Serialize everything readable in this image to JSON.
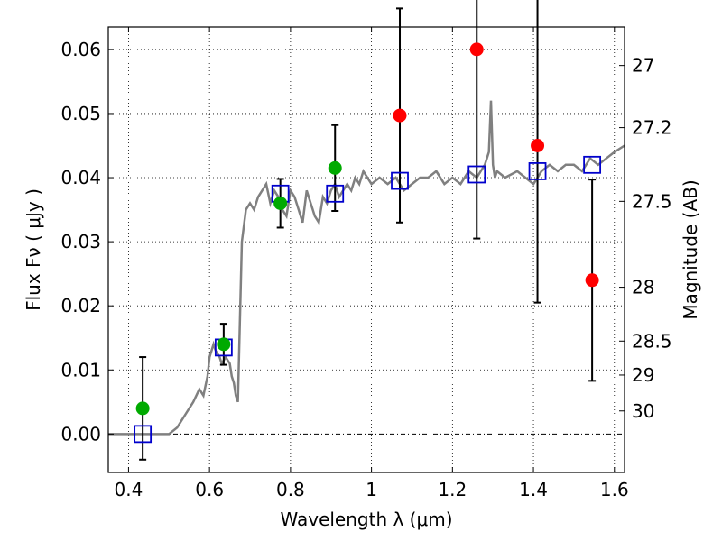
{
  "chart_data": {
    "type": "scatter",
    "title": "",
    "xlabel": "Wavelength  λ (μm)",
    "ylabel": "Flux  Fν  ( μJy )",
    "ylabel_right": "Magnitude (AB)",
    "xlim": [
      0.35,
      1.625
    ],
    "ylim": [
      -0.006,
      0.0635
    ],
    "x_ticks": [
      0.4,
      0.6,
      0.8,
      1.0,
      1.2,
      1.4,
      1.6
    ],
    "x_tick_labels": [
      "0.4",
      "0.6",
      "0.8",
      "1",
      "1.2",
      "1.4",
      "1.6"
    ],
    "y_ticks": [
      0.0,
      0.01,
      0.02,
      0.03,
      0.04,
      0.05,
      0.06
    ],
    "y_tick_labels": [
      "0.00",
      "0.01",
      "0.02",
      "0.03",
      "0.04",
      "0.05",
      "0.06"
    ],
    "right_axis_ticks": [
      {
        "label": "27",
        "flux": 0.0575
      },
      {
        "label": "27.2",
        "flux": 0.0478
      },
      {
        "label": "27.5",
        "flux": 0.0363
      },
      {
        "label": "28",
        "flux": 0.0229
      },
      {
        "label": "28.5",
        "flux": 0.0145
      },
      {
        "label": "29",
        "flux": 0.0092
      },
      {
        "label": "30",
        "flux": 0.0036
      }
    ],
    "grid": true,
    "zero_line": true,
    "colors": {
      "model": "#808080",
      "detection": "#00aa00",
      "upper_limit": "#ff0000",
      "model_box": "#0000cc",
      "errorbar": "#000000"
    },
    "series": [
      {
        "kind": "model_spectrum",
        "x": [
          0.35,
          0.43,
          0.5,
          0.52,
          0.54,
          0.56,
          0.575,
          0.585,
          0.595,
          0.6,
          0.61,
          0.615,
          0.625,
          0.63,
          0.64,
          0.65,
          0.655,
          0.66,
          0.665,
          0.67,
          0.68,
          0.69,
          0.7,
          0.71,
          0.72,
          0.73,
          0.74,
          0.75,
          0.76,
          0.77,
          0.78,
          0.79,
          0.8,
          0.81,
          0.82,
          0.83,
          0.84,
          0.85,
          0.86,
          0.87,
          0.88,
          0.89,
          0.9,
          0.91,
          0.92,
          0.93,
          0.94,
          0.95,
          0.96,
          0.97,
          0.98,
          1.0,
          1.02,
          1.04,
          1.06,
          1.08,
          1.1,
          1.12,
          1.14,
          1.16,
          1.18,
          1.2,
          1.22,
          1.24,
          1.26,
          1.27,
          1.28,
          1.29,
          1.295,
          1.3,
          1.305,
          1.31,
          1.33,
          1.36,
          1.38,
          1.4,
          1.42,
          1.44,
          1.46,
          1.48,
          1.5,
          1.52,
          1.54,
          1.56,
          1.58,
          1.6,
          1.625
        ],
        "y": [
          0.0,
          0.0,
          0.0,
          0.001,
          0.003,
          0.005,
          0.007,
          0.006,
          0.009,
          0.012,
          0.014,
          0.013,
          0.012,
          0.011,
          0.012,
          0.011,
          0.009,
          0.008,
          0.006,
          0.005,
          0.03,
          0.035,
          0.036,
          0.035,
          0.037,
          0.038,
          0.039,
          0.036,
          0.038,
          0.037,
          0.035,
          0.034,
          0.038,
          0.037,
          0.035,
          0.033,
          0.038,
          0.036,
          0.034,
          0.033,
          0.037,
          0.036,
          0.038,
          0.039,
          0.037,
          0.038,
          0.039,
          0.038,
          0.04,
          0.039,
          0.041,
          0.039,
          0.04,
          0.039,
          0.04,
          0.038,
          0.039,
          0.04,
          0.04,
          0.041,
          0.039,
          0.04,
          0.039,
          0.041,
          0.04,
          0.041,
          0.042,
          0.044,
          0.052,
          0.042,
          0.04,
          0.041,
          0.04,
          0.041,
          0.04,
          0.039,
          0.041,
          0.042,
          0.041,
          0.042,
          0.042,
          0.041,
          0.043,
          0.042,
          0.043,
          0.044,
          0.045
        ]
      },
      {
        "kind": "model_photometry",
        "x": [
          0.435,
          0.635,
          0.775,
          0.91,
          1.07,
          1.26,
          1.41,
          1.545
        ],
        "y": [
          0.0,
          0.0135,
          0.0375,
          0.0375,
          0.0395,
          0.0405,
          0.041,
          0.042
        ]
      },
      {
        "kind": "detections",
        "x": [
          0.435,
          0.635,
          0.775,
          0.91
        ],
        "y": [
          0.004,
          0.014,
          0.036,
          0.0415
        ],
        "yerr": [
          0.008,
          0.0032,
          0.0038,
          0.0067
        ]
      },
      {
        "kind": "non_detections",
        "x": [
          1.07,
          1.26,
          1.41,
          1.545
        ],
        "y": [
          0.0497,
          0.06,
          0.045,
          0.024
        ],
        "yerr": [
          0.0167,
          0.0295,
          0.0245,
          0.0157
        ]
      }
    ]
  }
}
